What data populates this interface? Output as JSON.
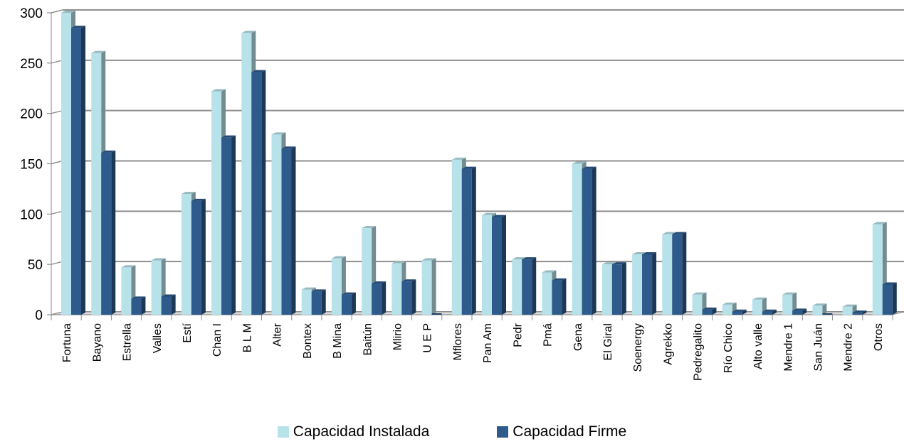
{
  "chart_data": {
    "type": "bar",
    "categories": [
      "Fortuna",
      "Bayano",
      "Estrella",
      "Valles",
      "Estí",
      "Chan I",
      "B L M",
      "Alter",
      "Bontex",
      "B Mina",
      "Baitún",
      "Mlirio",
      "U E P",
      "Mflores",
      "Pan Am",
      "Pedr",
      "Pmá",
      "Gena",
      "El Giral",
      "Soenergy",
      "Agrekko",
      "Pedregalito",
      "Río Chico",
      "Alto valle",
      "Mendre 1",
      "San Juán",
      "Mendre 2",
      "Otros"
    ],
    "series": [
      {
        "name": "Capacidad Instalada",
        "color": "#b8e2ea",
        "values": [
          300,
          260,
          47,
          54,
          120,
          222,
          280,
          179,
          25,
          56,
          86,
          51,
          54,
          154,
          99,
          55,
          42,
          150,
          50,
          60,
          80,
          20,
          10,
          15,
          20,
          9,
          8,
          90
        ]
      },
      {
        "name": "Capacidad Firme",
        "color": "#2e5a8c",
        "values": [
          285,
          161,
          16,
          18,
          113,
          176,
          241,
          165,
          23,
          20,
          31,
          33,
          0,
          145,
          97,
          55,
          34,
          145,
          50,
          60,
          80,
          5,
          3,
          3,
          4,
          0,
          2,
          30
        ]
      }
    ],
    "y_ticks": [
      "0",
      "50",
      "100",
      "150",
      "200",
      "250",
      "300"
    ],
    "ylim": [
      0,
      300
    ],
    "grid": true,
    "legend_position": "bottom",
    "title": "",
    "xlabel": "",
    "ylabel": ""
  }
}
